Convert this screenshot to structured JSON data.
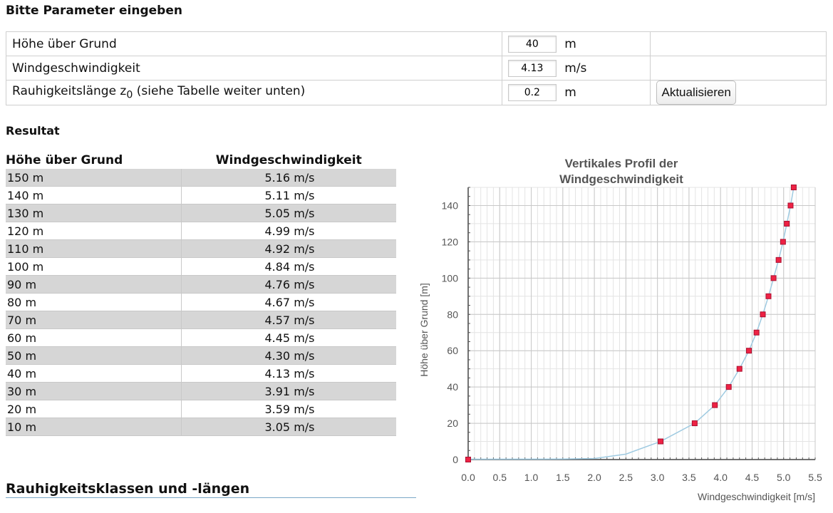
{
  "params": {
    "heading": "Bitte Parameter eingeben",
    "rows": [
      {
        "label": "Höhe über Grund",
        "value": "40",
        "unit": "m"
      },
      {
        "label": "Windgeschwindigkeit",
        "value": "4.13",
        "unit": "m/s"
      },
      {
        "label_main": "Rauhigkeitslänge z",
        "label_sub": "0",
        "label_rest": " (siehe Tabelle weiter unten)",
        "value": "0.2",
        "unit": "m"
      }
    ],
    "button": "Aktualisieren"
  },
  "result": {
    "heading": "Resultat",
    "col_height": "Höhe über Grund",
    "col_speed": "Windgeschwindigkeit",
    "rows": [
      {
        "height": "150 m",
        "speed": "5.16 m/s"
      },
      {
        "height": "140 m",
        "speed": "5.11 m/s"
      },
      {
        "height": "130 m",
        "speed": "5.05 m/s"
      },
      {
        "height": "120 m",
        "speed": "4.99 m/s"
      },
      {
        "height": "110 m",
        "speed": "4.92 m/s"
      },
      {
        "height": "100 m",
        "speed": "4.84 m/s"
      },
      {
        "height": "90 m",
        "speed": "4.76 m/s"
      },
      {
        "height": "80 m",
        "speed": "4.67 m/s"
      },
      {
        "height": "70 m",
        "speed": "4.57 m/s"
      },
      {
        "height": "60 m",
        "speed": "4.45 m/s"
      },
      {
        "height": "50 m",
        "speed": "4.30 m/s"
      },
      {
        "height": "40 m",
        "speed": "4.13 m/s"
      },
      {
        "height": "30 m",
        "speed": "3.91 m/s"
      },
      {
        "height": "20 m",
        "speed": "3.59 m/s"
      },
      {
        "height": "10 m",
        "speed": "3.05 m/s"
      }
    ]
  },
  "section_heading": "Rauhigkeitsklassen und -längen",
  "chart_data": {
    "type": "line",
    "title_lines": [
      "Vertikales Profil der",
      "Windgeschwindigkeit"
    ],
    "xlabel": "Windgeschwindigkeit [m/s]",
    "ylabel": "Höhe über Grund [m]",
    "xlim": [
      0,
      5.5
    ],
    "ylim": [
      0,
      150
    ],
    "xticks": [
      0,
      0.5,
      1,
      1.5,
      2,
      2.5,
      3,
      3.5,
      4,
      4.5,
      5,
      5.5
    ],
    "xtick_labels": [
      "0.0",
      "0.5",
      "1.0",
      "1.5",
      "2.0",
      "2.5",
      "3.0",
      "3.5",
      "4.0",
      "4.5",
      "5.0",
      "5.5"
    ],
    "yticks": [
      0,
      20,
      40,
      60,
      80,
      100,
      120,
      140
    ],
    "grid": true,
    "line_color": "#9ecae1",
    "marker_color": "#ee2244",
    "curve": {
      "x": [
        0,
        1.0,
        1.5,
        2.0,
        2.5,
        3.05,
        3.59,
        3.91,
        4.13,
        4.3,
        4.45,
        4.57,
        4.67,
        4.76,
        4.84,
        4.92,
        4.99,
        5.05,
        5.11,
        5.16
      ],
      "y": [
        0.2,
        0.25,
        0.3,
        0.6,
        3,
        10,
        20,
        30,
        40,
        50,
        60,
        70,
        80,
        90,
        100,
        110,
        120,
        130,
        140,
        150
      ]
    },
    "points": {
      "x": [
        0,
        3.05,
        3.59,
        3.91,
        4.13,
        4.3,
        4.45,
        4.57,
        4.67,
        4.76,
        4.84,
        4.92,
        4.99,
        5.05,
        5.11,
        5.16
      ],
      "y": [
        0,
        10,
        20,
        30,
        40,
        50,
        60,
        70,
        80,
        90,
        100,
        110,
        120,
        130,
        140,
        150
      ]
    }
  }
}
